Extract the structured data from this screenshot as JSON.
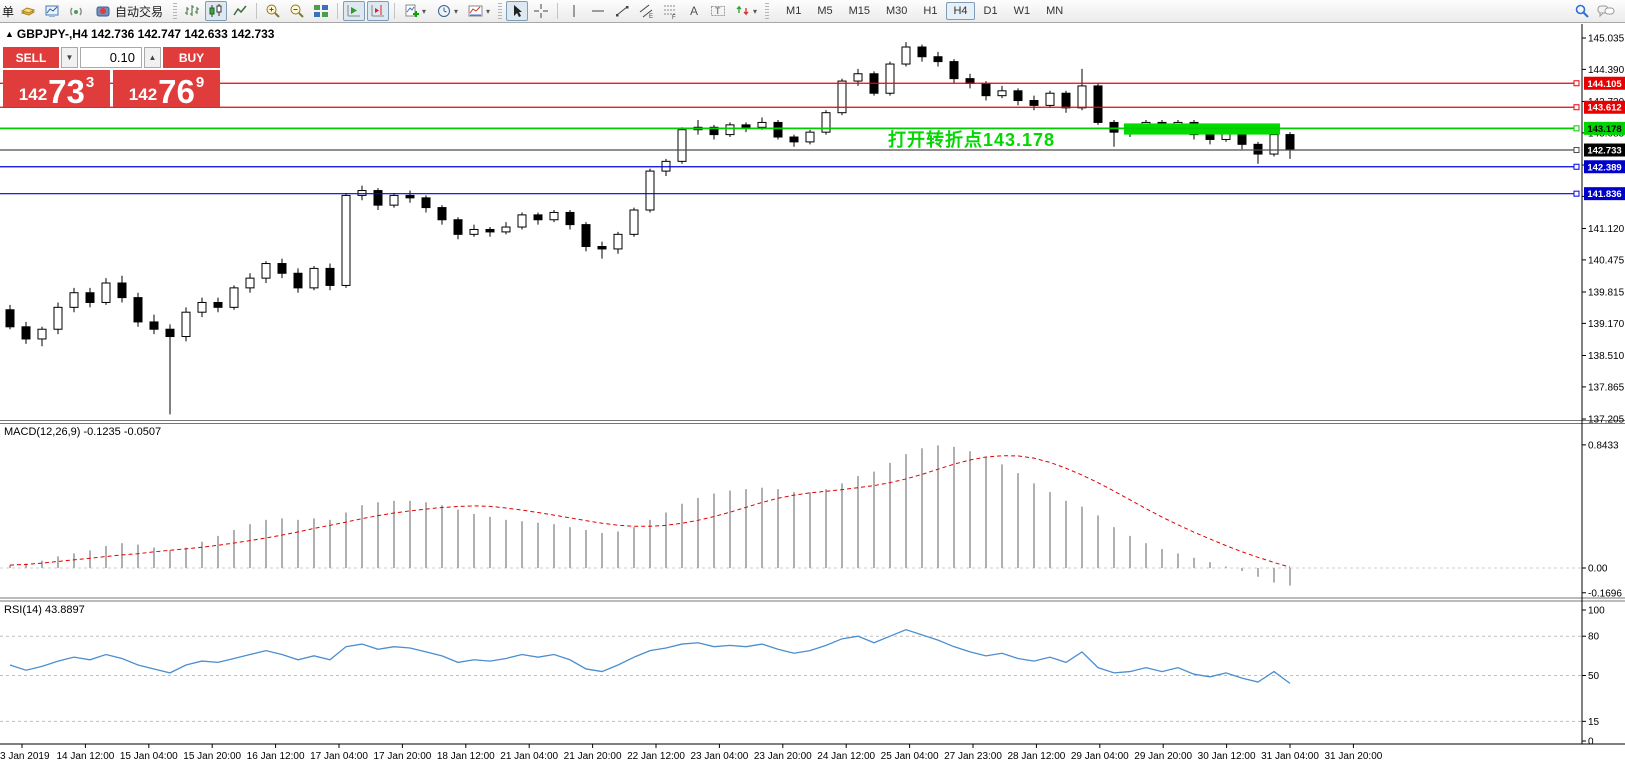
{
  "toolbar": {
    "partial_button": "单",
    "autotrading_label": "自动交易",
    "timeframes": [
      "M1",
      "M5",
      "M15",
      "M30",
      "H1",
      "H4",
      "D1",
      "W1",
      "MN"
    ],
    "active_timeframe": "H4",
    "icons": [
      "new-order-partial",
      "profile-icon",
      "new-chart-icon",
      "signals-icon",
      "autotrading-icon",
      "bar-chart-icon",
      "candlestick-icon",
      "line-chart-icon",
      "zoom-in-icon",
      "zoom-out-icon",
      "tile-windows-icon",
      "auto-scroll-icon",
      "chart-shift-icon",
      "add-indicator-icon",
      "periods-clock-icon",
      "template-icon",
      "cursor-icon",
      "crosshair-icon",
      "vertical-line-icon",
      "horizontal-line-icon",
      "trendline-icon",
      "equidistant-channel-icon",
      "fibonacci-icon",
      "text-tool-icon",
      "label-tool-icon",
      "shapes-icon",
      "search-icon",
      "chat-icon"
    ]
  },
  "chart": {
    "symbol_header": "GBPJPY-,H4 142.736 142.747 142.633 142.733",
    "trade_panel": {
      "sell_label": "SELL",
      "buy_label": "BUY",
      "volume": "0.10",
      "sell_price_prefix": "142",
      "sell_price_main": "73",
      "sell_price_sup": "3",
      "buy_price_prefix": "142",
      "buy_price_main": "76",
      "buy_price_sup": "9"
    }
  },
  "macd_panel": {
    "label": "MACD(12,26,9) -0.1235 -0.0507"
  },
  "rsi_panel": {
    "label": "RSI(14) 43.8897"
  },
  "chart_data": {
    "type": "candlestick",
    "symbol": "GBPJPY",
    "timeframe": "H4",
    "annotation": {
      "text": "打开转折点143.178",
      "color": "#00d800"
    },
    "y_ticks": [
      "145.035",
      "144.390",
      "143.730",
      "143.085",
      "142.425",
      "141.780",
      "141.120",
      "140.475",
      "139.815",
      "139.170",
      "138.510",
      "137.865",
      "137.205"
    ],
    "price_levels": [
      {
        "price": 144.105,
        "label": "144.105",
        "line_color": "#f00000",
        "tag_bg": "#e80000",
        "tag_fg": "#ffffff"
      },
      {
        "price": 143.612,
        "label": "143.612",
        "line_color": "#f00000",
        "tag_bg": "#e80000",
        "tag_fg": "#ffffff"
      },
      {
        "price": 143.178,
        "label": "143.178",
        "line_color": "#00cc00",
        "tag_bg": "#00d400",
        "tag_fg": "#000000"
      },
      {
        "price": 142.733,
        "label": "142.733",
        "line_color": "#4d4d4d",
        "tag_bg": "#000000",
        "tag_fg": "#ffffff"
      },
      {
        "price": 142.389,
        "label": "142.389",
        "line_color": "#0000e6",
        "tag_bg": "#0000cc",
        "tag_fg": "#ffffff"
      },
      {
        "price": 141.836,
        "label": "141.836",
        "line_color": "#0000e6",
        "tag_bg": "#0000cc",
        "tag_fg": "#ffffff"
      }
    ],
    "highlight_box": {
      "from_candle": 70,
      "to_candle": 79,
      "price_top": 143.28,
      "price_bottom": 143.05,
      "color": "#00dc00"
    },
    "ohlc": [
      [
        139.45,
        139.55,
        139.05,
        139.1
      ],
      [
        139.1,
        139.2,
        138.75,
        138.85
      ],
      [
        138.85,
        139.1,
        138.7,
        139.05
      ],
      [
        139.05,
        139.6,
        138.95,
        139.5
      ],
      [
        139.5,
        139.9,
        139.4,
        139.8
      ],
      [
        139.8,
        139.9,
        139.5,
        139.6
      ],
      [
        139.6,
        140.1,
        139.55,
        140.0
      ],
      [
        140.0,
        140.15,
        139.6,
        139.7
      ],
      [
        139.7,
        139.8,
        139.1,
        139.2
      ],
      [
        139.2,
        139.35,
        138.95,
        139.05
      ],
      [
        139.05,
        139.15,
        137.3,
        138.9
      ],
      [
        138.9,
        139.5,
        138.8,
        139.4
      ],
      [
        139.4,
        139.7,
        139.3,
        139.6
      ],
      [
        139.6,
        139.7,
        139.4,
        139.5
      ],
      [
        139.5,
        139.95,
        139.45,
        139.9
      ],
      [
        139.9,
        140.2,
        139.8,
        140.1
      ],
      [
        140.1,
        140.45,
        140.0,
        140.4
      ],
      [
        140.4,
        140.5,
        140.1,
        140.2
      ],
      [
        140.2,
        140.3,
        139.8,
        139.9
      ],
      [
        139.9,
        140.35,
        139.85,
        140.3
      ],
      [
        140.3,
        140.4,
        139.85,
        139.95
      ],
      [
        139.95,
        141.85,
        139.9,
        141.8
      ],
      [
        141.8,
        142.0,
        141.7,
        141.9
      ],
      [
        141.9,
        141.95,
        141.5,
        141.6
      ],
      [
        141.6,
        141.85,
        141.55,
        141.8
      ],
      [
        141.8,
        141.9,
        141.65,
        141.75
      ],
      [
        141.75,
        141.8,
        141.45,
        141.55
      ],
      [
        141.55,
        141.6,
        141.2,
        141.3
      ],
      [
        141.3,
        141.35,
        140.9,
        141.0
      ],
      [
        141.0,
        141.2,
        140.95,
        141.1
      ],
      [
        141.1,
        141.15,
        140.95,
        141.05
      ],
      [
        141.05,
        141.25,
        141.0,
        141.15
      ],
      [
        141.15,
        141.45,
        141.1,
        141.4
      ],
      [
        141.4,
        141.45,
        141.2,
        141.3
      ],
      [
        141.3,
        141.5,
        141.25,
        141.45
      ],
      [
        141.45,
        141.5,
        141.1,
        141.2
      ],
      [
        141.2,
        141.25,
        140.65,
        140.75
      ],
      [
        140.75,
        140.85,
        140.5,
        140.7
      ],
      [
        140.7,
        141.05,
        140.6,
        141.0
      ],
      [
        141.0,
        141.55,
        140.95,
        141.5
      ],
      [
        141.5,
        142.35,
        141.45,
        142.3
      ],
      [
        142.3,
        142.55,
        142.2,
        142.5
      ],
      [
        142.5,
        143.2,
        142.45,
        143.15
      ],
      [
        143.15,
        143.35,
        143.05,
        143.2
      ],
      [
        143.2,
        143.25,
        142.95,
        143.05
      ],
      [
        143.05,
        143.3,
        143.0,
        143.25
      ],
      [
        143.25,
        143.3,
        143.1,
        143.2
      ],
      [
        143.2,
        143.4,
        143.15,
        143.3
      ],
      [
        143.3,
        143.35,
        142.95,
        143.0
      ],
      [
        143.0,
        143.05,
        142.8,
        142.9
      ],
      [
        142.9,
        143.15,
        142.85,
        143.1
      ],
      [
        143.1,
        143.55,
        143.05,
        143.5
      ],
      [
        143.5,
        144.2,
        143.45,
        144.15
      ],
      [
        144.15,
        144.4,
        144.05,
        144.3
      ],
      [
        144.3,
        144.35,
        143.85,
        143.9
      ],
      [
        143.9,
        144.55,
        143.85,
        144.5
      ],
      [
        144.5,
        144.95,
        144.45,
        144.85
      ],
      [
        144.85,
        144.9,
        144.55,
        144.65
      ],
      [
        144.65,
        144.75,
        144.45,
        144.55
      ],
      [
        144.55,
        144.6,
        144.1,
        144.2
      ],
      [
        144.2,
        144.3,
        144.0,
        144.1
      ],
      [
        144.1,
        144.15,
        143.75,
        143.85
      ],
      [
        143.85,
        144.05,
        143.8,
        143.95
      ],
      [
        143.95,
        144.0,
        143.65,
        143.75
      ],
      [
        143.75,
        143.85,
        143.55,
        143.65
      ],
      [
        143.65,
        143.95,
        143.6,
        143.9
      ],
      [
        143.9,
        143.95,
        143.5,
        143.6
      ],
      [
        143.6,
        144.4,
        143.55,
        144.05
      ],
      [
        144.05,
        144.1,
        143.25,
        143.3
      ],
      [
        143.3,
        143.35,
        142.8,
        143.1
      ],
      [
        143.1,
        143.25,
        143.0,
        143.15
      ],
      [
        143.15,
        143.35,
        143.1,
        143.3
      ],
      [
        143.3,
        143.35,
        143.1,
        143.2
      ],
      [
        143.2,
        143.35,
        143.15,
        143.3
      ],
      [
        143.3,
        143.35,
        142.95,
        143.05
      ],
      [
        143.05,
        143.1,
        142.85,
        142.95
      ],
      [
        142.95,
        143.15,
        142.9,
        143.1
      ],
      [
        143.1,
        143.15,
        142.75,
        142.85
      ],
      [
        142.85,
        142.9,
        142.45,
        142.65
      ],
      [
        142.65,
        143.1,
        142.6,
        143.05
      ],
      [
        143.05,
        143.1,
        142.55,
        142.733
      ]
    ],
    "macd": {
      "label": "MACD(12,26,9) -0.1235 -0.0507",
      "values": [
        0.02,
        0.03,
        0.05,
        0.08,
        0.1,
        0.12,
        0.15,
        0.17,
        0.16,
        0.14,
        0.12,
        0.14,
        0.18,
        0.22,
        0.26,
        0.3,
        0.33,
        0.34,
        0.33,
        0.34,
        0.33,
        0.38,
        0.43,
        0.45,
        0.46,
        0.46,
        0.45,
        0.43,
        0.4,
        0.37,
        0.35,
        0.33,
        0.32,
        0.31,
        0.3,
        0.28,
        0.26,
        0.24,
        0.25,
        0.28,
        0.33,
        0.38,
        0.44,
        0.48,
        0.51,
        0.53,
        0.54,
        0.55,
        0.54,
        0.52,
        0.52,
        0.54,
        0.58,
        0.63,
        0.66,
        0.72,
        0.78,
        0.82,
        0.84,
        0.83,
        0.8,
        0.76,
        0.71,
        0.65,
        0.58,
        0.52,
        0.46,
        0.42,
        0.36,
        0.28,
        0.22,
        0.17,
        0.13,
        0.1,
        0.07,
        0.04,
        0.01,
        -0.02,
        -0.06,
        -0.1,
        -0.12
      ],
      "scale_labels": [
        {
          "text": "0.8433",
          "value": 0.8433
        },
        {
          "text": "0.00",
          "value": 0
        },
        {
          "text": "-0.1696",
          "value": -0.1696
        }
      ]
    },
    "rsi": {
      "label": "RSI(14) 43.8897",
      "values": [
        58,
        54,
        57,
        61,
        64,
        62,
        66,
        63,
        58,
        55,
        52,
        58,
        61,
        60,
        63,
        66,
        69,
        66,
        62,
        65,
        62,
        72,
        74,
        70,
        72,
        71,
        68,
        65,
        60,
        62,
        61,
        63,
        66,
        64,
        66,
        62,
        55,
        53,
        58,
        64,
        69,
        71,
        74,
        75,
        72,
        73,
        72,
        74,
        70,
        67,
        69,
        73,
        78,
        80,
        75,
        80,
        85,
        81,
        77,
        72,
        68,
        65,
        67,
        63,
        61,
        64,
        60,
        68,
        56,
        52,
        53,
        56,
        53,
        56,
        51,
        49,
        52,
        48,
        45,
        53,
        44
      ],
      "levels": [
        80,
        50,
        15
      ],
      "scale_labels": [
        {
          "text": "100",
          "value": 100
        },
        {
          "text": "80",
          "value": 80
        },
        {
          "text": "50",
          "value": 50
        },
        {
          "text": "15",
          "value": 15
        },
        {
          "text": "0",
          "value": 0
        }
      ]
    },
    "x_labels": [
      "13 Jan 2019",
      "14 Jan 12:00",
      "15 Jan 04:00",
      "15 Jan 20:00",
      "16 Jan 12:00",
      "17 Jan 04:00",
      "17 Jan 20:00",
      "18 Jan 12:00",
      "21 Jan 04:00",
      "21 Jan 20:00",
      "22 Jan 12:00",
      "23 Jan 04:00",
      "23 Jan 20:00",
      "24 Jan 12:00",
      "25 Jan 04:00",
      "27 Jan 23:00",
      "28 Jan 12:00",
      "29 Jan 04:00",
      "29 Jan 20:00",
      "30 Jan 12:00",
      "31 Jan 04:00",
      "31 Jan 20:00"
    ]
  }
}
